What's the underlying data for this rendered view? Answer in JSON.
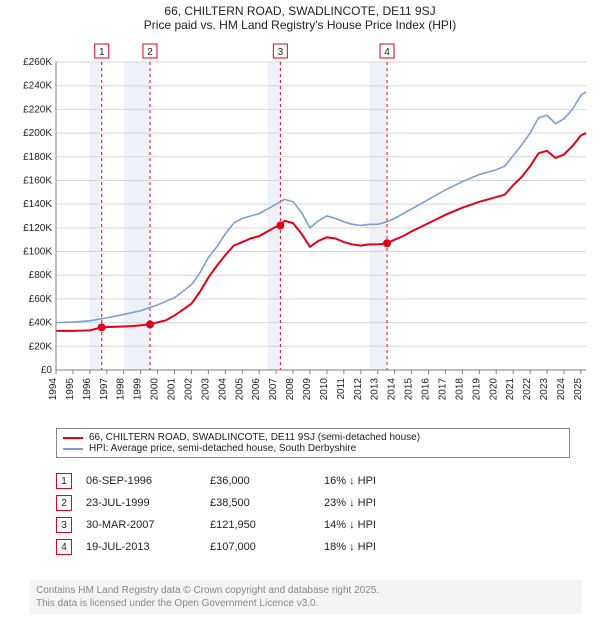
{
  "title1": "66, CHILTERN ROAD, SWADLINCOTE, DE11 9SJ",
  "title2": "Price paid vs. HM Land Registry's House Price Index (HPI)",
  "chart": {
    "type": "line",
    "background_color": "#ffffff",
    "plot_border_color": "#808080",
    "grid_color": "#d6d6d6",
    "x_years": [
      1994,
      1995,
      1996,
      1997,
      1998,
      1999,
      2000,
      2001,
      2002,
      2003,
      2004,
      2005,
      2006,
      2007,
      2008,
      2009,
      2010,
      2011,
      2012,
      2013,
      2014,
      2015,
      2016,
      2017,
      2018,
      2019,
      2020,
      2021,
      2022,
      2023,
      2024,
      2025
    ],
    "xlim": [
      1994,
      2025.3
    ],
    "ylim": [
      0,
      260000
    ],
    "ytick_step": 20000,
    "ytick_labels": [
      "£0",
      "£20K",
      "£40K",
      "£60K",
      "£80K",
      "£100K",
      "£120K",
      "£140K",
      "£160K",
      "£180K",
      "£200K",
      "£220K",
      "£240K",
      "£260K"
    ],
    "ylabel_fontsize": 10,
    "xlabel_fontsize": 10,
    "shaded_bands": [
      {
        "from": 1996.0,
        "to": 1996.6,
        "color": "#eef2f8"
      },
      {
        "from": 1998.0,
        "to": 1999.5,
        "color": "#eef2f8"
      },
      {
        "from": 2006.5,
        "to": 2007.2,
        "color": "#eef2f8"
      },
      {
        "from": 2012.5,
        "to": 2013.5,
        "color": "#eef2f8"
      }
    ],
    "series": [
      {
        "name": "66, CHILTERN ROAD, SWADLINCOTE, DE11 9SJ (semi-detached house)",
        "color": "#e2001a",
        "line_width": 2,
        "points": [
          [
            1994.0,
            33000
          ],
          [
            1995.0,
            33000
          ],
          [
            1996.0,
            33500
          ],
          [
            1996.7,
            36000
          ],
          [
            1997.5,
            36500
          ],
          [
            1998.5,
            37000
          ],
          [
            1999.55,
            38500
          ],
          [
            2000.5,
            42000
          ],
          [
            2001.0,
            46000
          ],
          [
            2002.0,
            56000
          ],
          [
            2002.5,
            66000
          ],
          [
            2003.0,
            78000
          ],
          [
            2003.5,
            88000
          ],
          [
            2004.0,
            97000
          ],
          [
            2004.5,
            105000
          ],
          [
            2005.0,
            108000
          ],
          [
            2005.5,
            111000
          ],
          [
            2006.0,
            113000
          ],
          [
            2006.5,
            117000
          ],
          [
            2007.0,
            121000
          ],
          [
            2007.25,
            121950
          ],
          [
            2007.5,
            126000
          ],
          [
            2008.0,
            124000
          ],
          [
            2008.5,
            115000
          ],
          [
            2009.0,
            104000
          ],
          [
            2009.5,
            109000
          ],
          [
            2010.0,
            112000
          ],
          [
            2010.5,
            111000
          ],
          [
            2011.0,
            108000
          ],
          [
            2011.5,
            106000
          ],
          [
            2012.0,
            105000
          ],
          [
            2012.5,
            106000
          ],
          [
            2013.0,
            106000
          ],
          [
            2013.55,
            107000
          ],
          [
            2014.0,
            110000
          ],
          [
            2014.5,
            113000
          ],
          [
            2015.0,
            117000
          ],
          [
            2016.0,
            124000
          ],
          [
            2017.0,
            131000
          ],
          [
            2018.0,
            137000
          ],
          [
            2019.0,
            142000
          ],
          [
            2020.0,
            146000
          ],
          [
            2020.5,
            148000
          ],
          [
            2021.0,
            156000
          ],
          [
            2021.5,
            163000
          ],
          [
            2022.0,
            172000
          ],
          [
            2022.5,
            183000
          ],
          [
            2023.0,
            185000
          ],
          [
            2023.5,
            179000
          ],
          [
            2024.0,
            182000
          ],
          [
            2024.5,
            189000
          ],
          [
            2025.0,
            198000
          ],
          [
            2025.3,
            200000
          ]
        ],
        "markers": [
          {
            "x": 1996.7,
            "y": 36000
          },
          {
            "x": 1999.55,
            "y": 38500
          },
          {
            "x": 2007.25,
            "y": 121950
          },
          {
            "x": 2013.55,
            "y": 107000
          }
        ],
        "marker_color": "#e2001a",
        "marker_radius": 4
      },
      {
        "name": "HPI: Average price, semi-detached house, South Derbyshire",
        "color": "#7a9fd4",
        "line_width": 1.6,
        "points": [
          [
            1994.0,
            40000
          ],
          [
            1995.0,
            40500
          ],
          [
            1996.0,
            41500
          ],
          [
            1997.0,
            44000
          ],
          [
            1998.0,
            47000
          ],
          [
            1999.0,
            50000
          ],
          [
            2000.0,
            55000
          ],
          [
            2001.0,
            61000
          ],
          [
            2002.0,
            72000
          ],
          [
            2002.5,
            82000
          ],
          [
            2003.0,
            95000
          ],
          [
            2003.5,
            104000
          ],
          [
            2004.0,
            115000
          ],
          [
            2004.5,
            124000
          ],
          [
            2005.0,
            128000
          ],
          [
            2005.5,
            130000
          ],
          [
            2006.0,
            132000
          ],
          [
            2006.5,
            136000
          ],
          [
            2007.0,
            140000
          ],
          [
            2007.5,
            144000
          ],
          [
            2008.0,
            142000
          ],
          [
            2008.5,
            133000
          ],
          [
            2009.0,
            120000
          ],
          [
            2009.5,
            126000
          ],
          [
            2010.0,
            130000
          ],
          [
            2010.5,
            128000
          ],
          [
            2011.0,
            125000
          ],
          [
            2011.5,
            123000
          ],
          [
            2012.0,
            122000
          ],
          [
            2012.5,
            123000
          ],
          [
            2013.0,
            123000
          ],
          [
            2013.5,
            125000
          ],
          [
            2014.0,
            128000
          ],
          [
            2014.5,
            132000
          ],
          [
            2015.0,
            136000
          ],
          [
            2016.0,
            144000
          ],
          [
            2017.0,
            152000
          ],
          [
            2018.0,
            159000
          ],
          [
            2019.0,
            165000
          ],
          [
            2020.0,
            169000
          ],
          [
            2020.5,
            172000
          ],
          [
            2021.0,
            181000
          ],
          [
            2021.5,
            190000
          ],
          [
            2022.0,
            200000
          ],
          [
            2022.5,
            213000
          ],
          [
            2023.0,
            215000
          ],
          [
            2023.5,
            208000
          ],
          [
            2024.0,
            212000
          ],
          [
            2024.5,
            220000
          ],
          [
            2025.0,
            232000
          ],
          [
            2025.3,
            235000
          ]
        ]
      }
    ],
    "event_lines": [
      {
        "label": "1",
        "x": 1996.7,
        "color": "#e2001a"
      },
      {
        "label": "2",
        "x": 1999.55,
        "color": "#e2001a"
      },
      {
        "label": "3",
        "x": 2007.25,
        "color": "#e2001a"
      },
      {
        "label": "4",
        "x": 2013.55,
        "color": "#e2001a"
      }
    ],
    "event_line_dash": "3,3",
    "event_box_border": "#e2001a",
    "event_box_text_color": "#222"
  },
  "legend": {
    "rows": [
      {
        "color": "#e2001a",
        "label": "66, CHILTERN ROAD, SWADLINCOTE, DE11 9SJ (semi-detached house)"
      },
      {
        "color": "#7a9fd4",
        "label": "HPI: Average price, semi-detached house, South Derbyshire"
      }
    ]
  },
  "events_table": [
    {
      "n": "1",
      "date": "06-SEP-1996",
      "price": "£36,000",
      "pct": "16% ↓ HPI"
    },
    {
      "n": "2",
      "date": "23-JUL-1999",
      "price": "£38,500",
      "pct": "23% ↓ HPI"
    },
    {
      "n": "3",
      "date": "30-MAR-2007",
      "price": "£121,950",
      "pct": "14% ↓ HPI"
    },
    {
      "n": "4",
      "date": "19-JUL-2013",
      "price": "£107,000",
      "pct": "18% ↓ HPI"
    }
  ],
  "footer_line1": "Contains HM Land Registry data © Crown copyright and database right 2025.",
  "footer_line2": "This data is licensed under the Open Government Licence v3.0."
}
